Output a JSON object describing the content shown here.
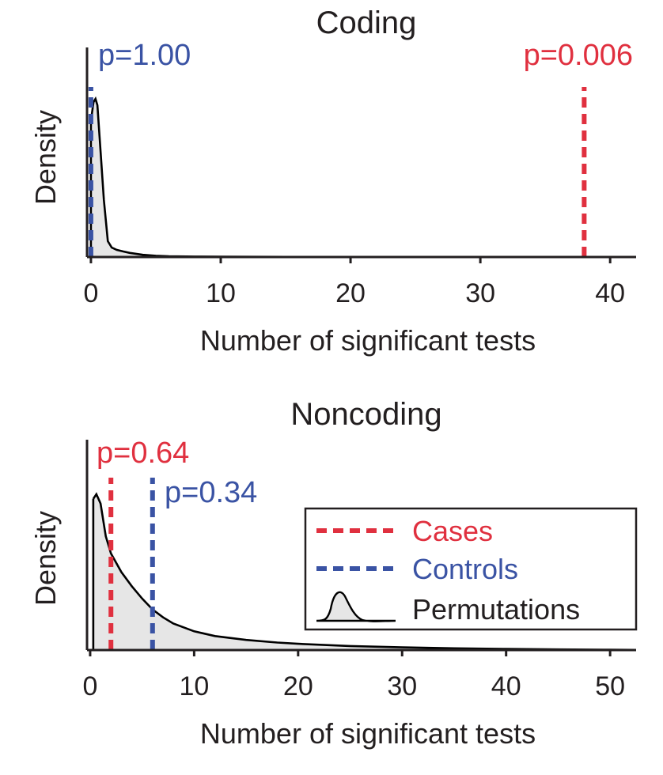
{
  "chart_data": [
    {
      "type": "area",
      "title": "Coding",
      "xlabel": "Number of significant tests",
      "ylabel": "Density",
      "xlim": [
        -0.3,
        42
      ],
      "ylim": [
        0,
        1.05
      ],
      "x_ticks": [
        0,
        10,
        20,
        30,
        40
      ],
      "x_tick_labels": [
        "0",
        "10",
        "20",
        "30",
        "40"
      ],
      "y_ticks_shown": false,
      "grid": false,
      "series": [
        {
          "x": [
            0,
            0.2,
            0.35,
            0.5,
            0.7,
            1.0,
            1.3,
            1.6,
            2.0,
            2.5,
            3.0,
            4.0,
            5.0,
            6.0,
            8.0,
            10.0,
            15.0,
            20.0,
            30.0,
            42.0
          ],
          "y": [
            0.86,
            0.98,
            1.0,
            0.96,
            0.72,
            0.36,
            0.1,
            0.06,
            0.045,
            0.035,
            0.026,
            0.014,
            0.008,
            0.005,
            0.003,
            0.002,
            0.001,
            0.0006,
            0.0003,
            0.0001
          ]
        }
      ],
      "reference_lines": [
        {
          "label": "p=1.00",
          "x": 0,
          "color": "#3a53a4"
        },
        {
          "label": "p=0.006",
          "x": 38,
          "color": "#e0303f"
        }
      ]
    },
    {
      "type": "area",
      "title": "Noncoding",
      "xlabel": "Number of significant tests",
      "ylabel": "Density",
      "xlim": [
        -0.3,
        52.5
      ],
      "ylim": [
        0,
        1.05
      ],
      "x_ticks": [
        0,
        10,
        20,
        30,
        40,
        50
      ],
      "x_tick_labels": [
        "0",
        "10",
        "20",
        "30",
        "40",
        "50"
      ],
      "y_ticks_shown": false,
      "grid": false,
      "series": [
        {
          "x": [
            0.3,
            0.6,
            1.0,
            1.5,
            2.0,
            3.0,
            4.0,
            5.0,
            6.0,
            7.0,
            8.0,
            10.0,
            12.0,
            15.0,
            18.0,
            20.0,
            25.0,
            30.0,
            35.0,
            40.0,
            45.0,
            50.0,
            52.5
          ],
          "y": [
            0.97,
            1.0,
            0.94,
            0.73,
            0.62,
            0.5,
            0.41,
            0.33,
            0.26,
            0.21,
            0.17,
            0.12,
            0.09,
            0.065,
            0.048,
            0.04,
            0.026,
            0.017,
            0.011,
            0.007,
            0.004,
            0.002,
            0.001
          ]
        }
      ],
      "reference_lines": [
        {
          "label": "p=0.64",
          "x": 2,
          "color": "#e0303f"
        },
        {
          "label": "p=0.34",
          "x": 6,
          "color": "#3a53a4"
        }
      ],
      "legend": {
        "placement": "right",
        "entries": [
          {
            "label": "Cases",
            "color": "#e0303f",
            "style": "dashed"
          },
          {
            "label": "Controls",
            "color": "#3a53a4",
            "style": "dashed"
          },
          {
            "label": "Permutations",
            "color": "#231f20",
            "style": "density"
          }
        ]
      }
    }
  ]
}
